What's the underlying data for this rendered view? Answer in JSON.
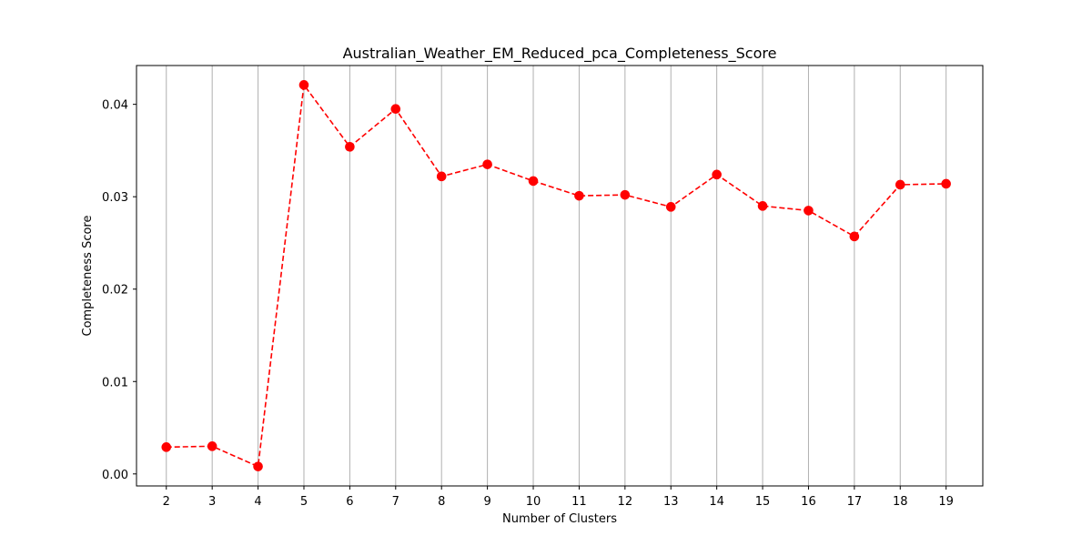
{
  "chart_data": {
    "type": "line",
    "title": "Australian_Weather_EM_Reduced_pca_Completeness_Score",
    "xlabel": "Number of Clusters",
    "ylabel": "Completeness Score",
    "x": [
      2,
      3,
      4,
      5,
      6,
      7,
      8,
      9,
      10,
      11,
      12,
      13,
      14,
      15,
      16,
      17,
      18,
      19
    ],
    "series": [
      {
        "values": [
          0.0029,
          0.003,
          0.0008,
          0.0421,
          0.0354,
          0.0395,
          0.0322,
          0.0335,
          0.0317,
          0.0301,
          0.0302,
          0.0289,
          0.0324,
          0.029,
          0.0285,
          0.0257,
          0.0313,
          0.0314
        ],
        "color": "#ff0000",
        "line_style": "dashed",
        "marker": "circle"
      }
    ],
    "xlim": [
      1.35,
      19.8
    ],
    "ylim": [
      -0.0013,
      0.0442
    ],
    "yticks": [
      0.0,
      0.01,
      0.02,
      0.03,
      0.04
    ],
    "ytick_labels": [
      "0.00",
      "0.01",
      "0.02",
      "0.03",
      "0.04"
    ],
    "xtick_labels": [
      "2",
      "3",
      "4",
      "5",
      "6",
      "7",
      "8",
      "9",
      "10",
      "11",
      "12",
      "13",
      "14",
      "15",
      "16",
      "17",
      "18",
      "19"
    ],
    "grid": "vertical",
    "grid_color": "#b0b0b0",
    "legend": "none"
  }
}
